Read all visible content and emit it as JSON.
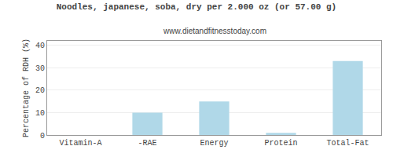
{
  "chart_data": {
    "type": "bar",
    "title": "Noodles, japanese, soba, dry per 2.000 oz (or 57.00 g)",
    "subtitle": "www.dietandfitnesstoday.com",
    "categories": [
      "Vitamin-A",
      "-RAE",
      "Energy",
      "Protein",
      "Total-Fat"
    ],
    "values": [
      0,
      10,
      15,
      1,
      33
    ],
    "color": "#b0d8e8",
    "ylabel": "Percentage of RDH (%)",
    "ylim": [
      0,
      42
    ],
    "yticks": [
      0,
      10,
      20,
      30,
      40
    ],
    "grid": true
  }
}
